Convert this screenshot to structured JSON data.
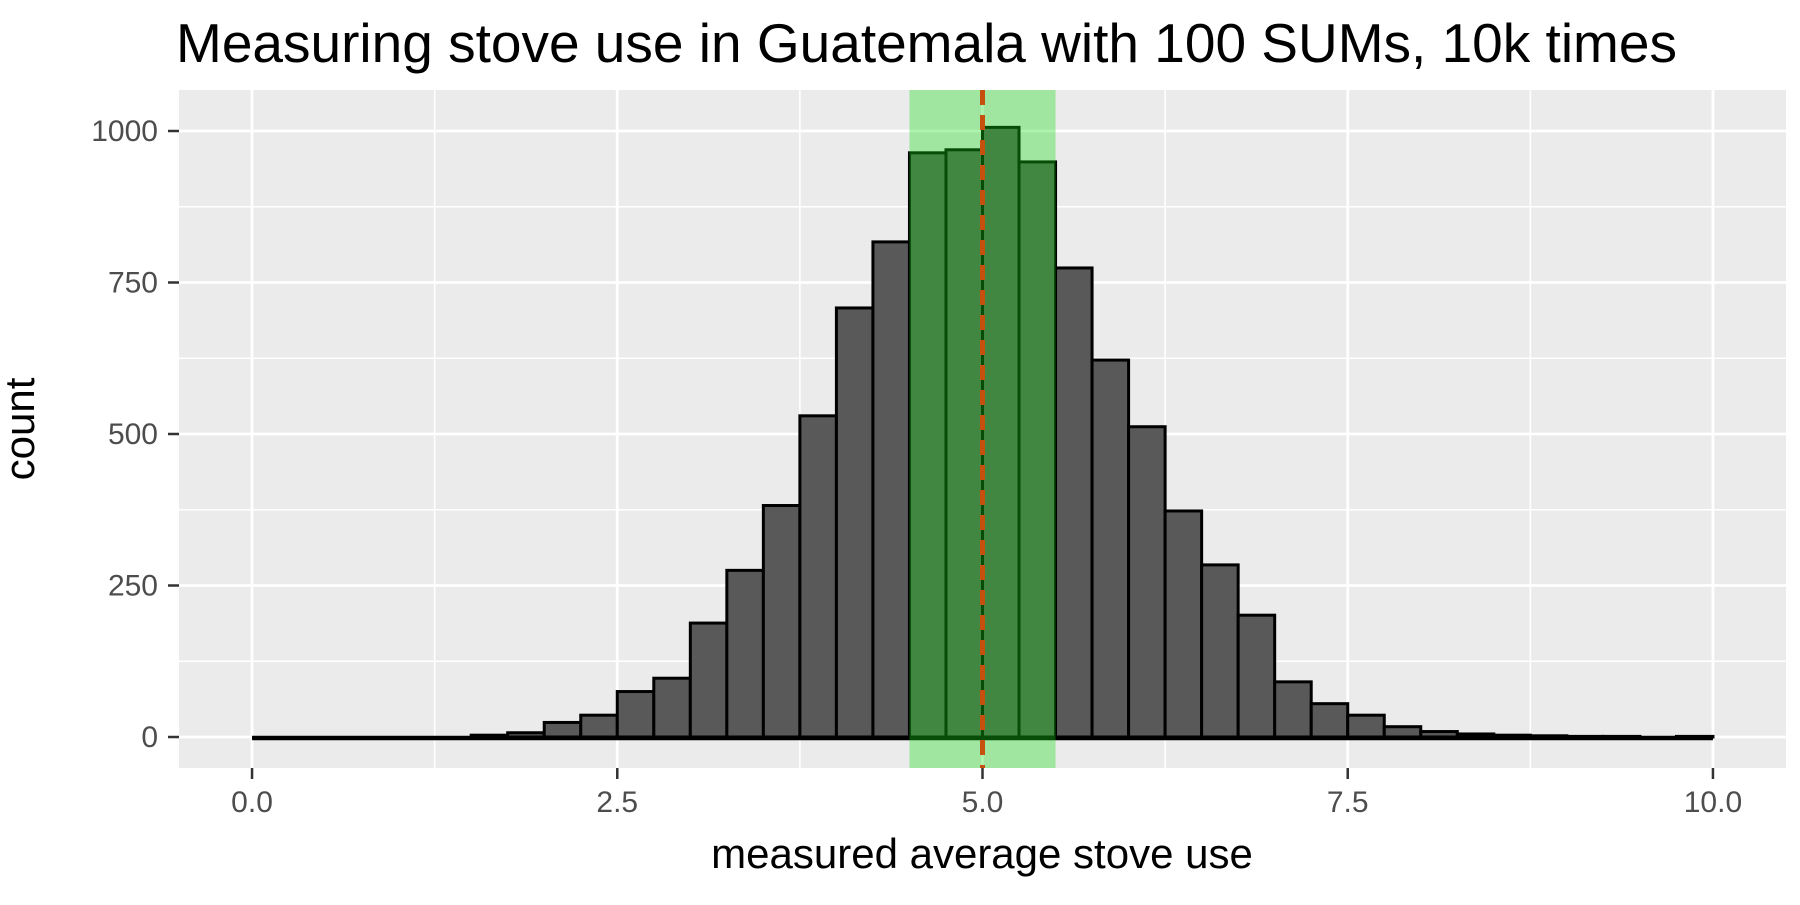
{
  "chart_data": {
    "type": "bar",
    "subtype": "histogram",
    "title": "Measuring stove use in Guatemala with 100 SUMs, 10k times",
    "xlabel": "measured average stove use",
    "ylabel": "count",
    "x_ticks": [
      0,
      2.5,
      5,
      7.5,
      10
    ],
    "x_tick_labels": [
      "0.0",
      "2.5",
      "5.0",
      "7.5",
      "10.0"
    ],
    "x_minor_ticks": [
      1.25,
      3.75,
      6.25,
      8.75
    ],
    "y_ticks": [
      0,
      250,
      500,
      750,
      1000
    ],
    "y_tick_labels": [
      "0",
      "250",
      "500",
      "750",
      "1000"
    ],
    "y_minor_ticks": [
      125,
      375,
      625,
      875
    ],
    "xlim": [
      -0.5,
      10.5
    ],
    "ylim": [
      -52,
      1067
    ],
    "grid": "on",
    "legend": "none",
    "bin_start": 0,
    "bin_width": 0.25,
    "counts": [
      0,
      0,
      0,
      0,
      0,
      0,
      3,
      7,
      24,
      36,
      75,
      97,
      188,
      275,
      382,
      530,
      708,
      817,
      964,
      969,
      1006,
      949,
      774,
      622,
      512,
      373,
      284,
      201,
      91,
      55,
      36,
      17,
      9,
      5,
      3,
      2,
      1,
      1,
      0,
      1
    ],
    "highlight_band": {
      "x0": 4.5,
      "x1": 5.5
    },
    "reference_line": {
      "x": 5.0,
      "style": "dashed"
    },
    "colors": {
      "background": "#FFFFFF",
      "panel_bg": "#EBEBEB",
      "grid": "#FFFFFF",
      "bar_fill": "#595959",
      "bar_stroke": "#000000",
      "band_fill": "rgba(20,220,20,0.35)",
      "ref_line": "#C6510F",
      "axis_text": "#4D4D4D",
      "axis_title": "#000000",
      "tick_mark": "#333333",
      "title_color": "#000000"
    }
  }
}
